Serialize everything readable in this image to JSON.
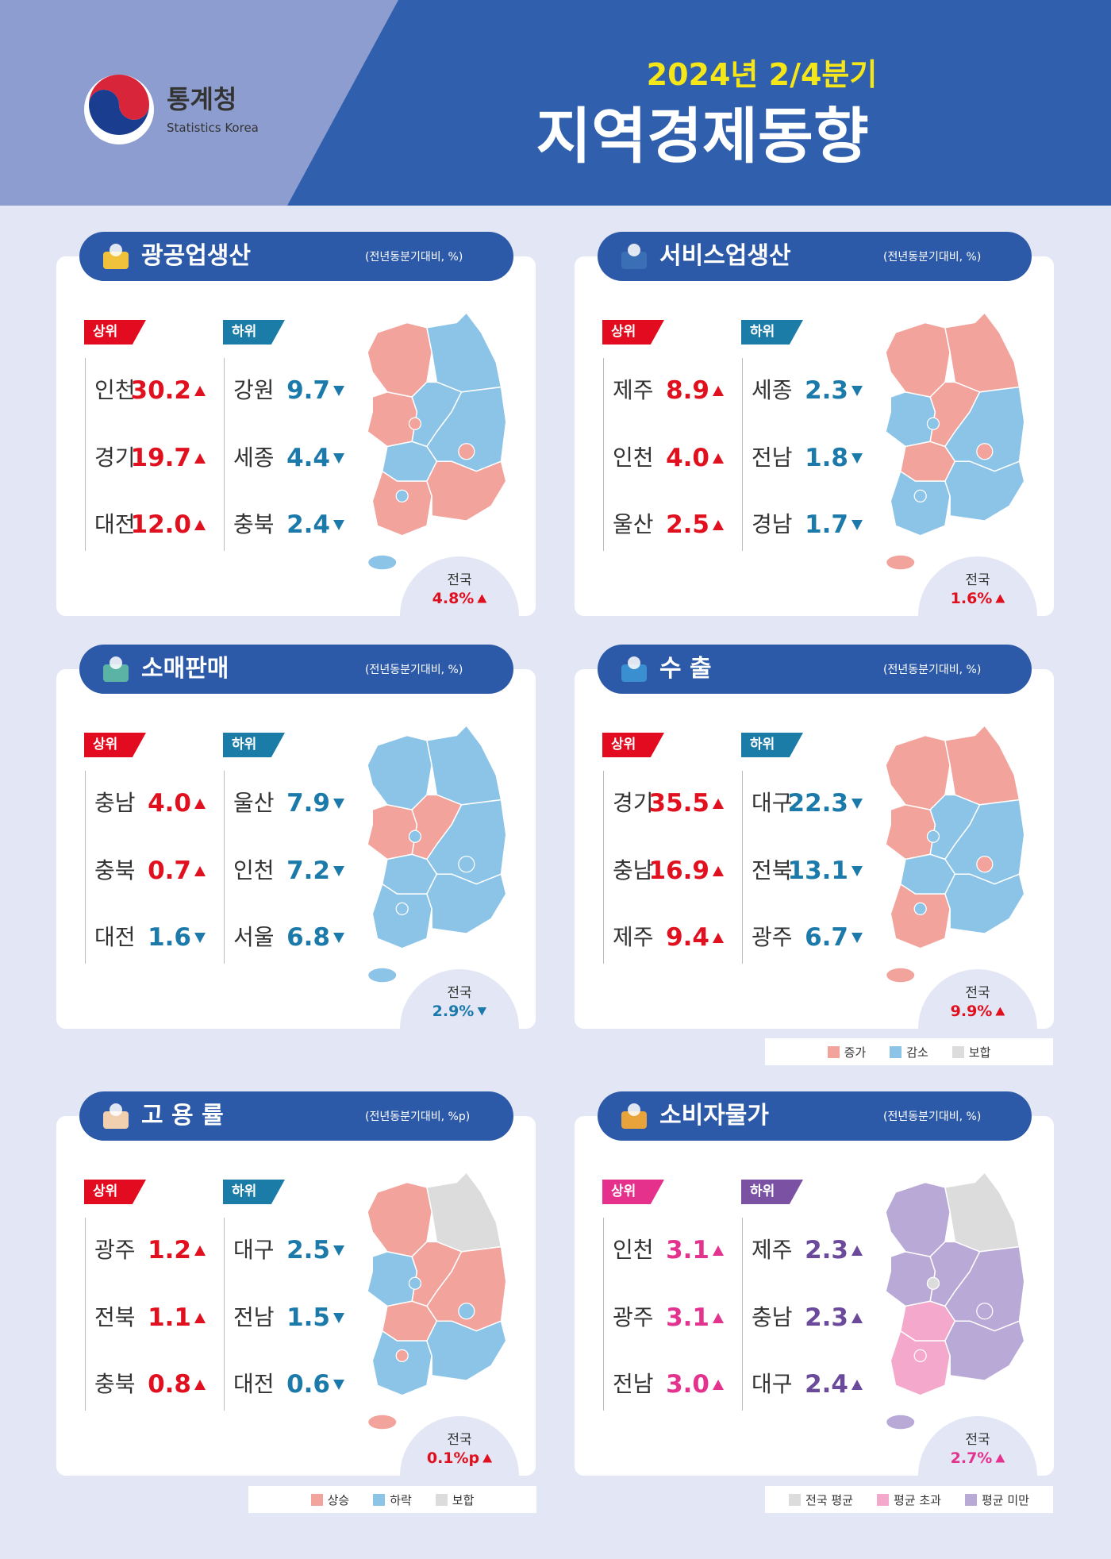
{
  "header": {
    "logo_name": "통계청",
    "logo_sub": "Statistics Korea",
    "period": "2024년 2/4분기",
    "title": "지역경제동향"
  },
  "panels": [
    {
      "title": "광공업생산",
      "unit": "(전년동분기대비, %)",
      "top_label": "상위",
      "bottom_label": "하위",
      "top": [
        {
          "region": "인천",
          "value": "30.2",
          "trend": "up"
        },
        {
          "region": "경기",
          "value": "19.7",
          "trend": "up"
        },
        {
          "region": "대전",
          "value": "12.0",
          "trend": "up"
        }
      ],
      "bottom": [
        {
          "region": "강원",
          "value": "9.7",
          "trend": "down"
        },
        {
          "region": "세종",
          "value": "4.4",
          "trend": "down"
        },
        {
          "region": "충북",
          "value": "2.4",
          "trend": "down"
        }
      ],
      "national": {
        "label": "전국",
        "value": "4.8%",
        "trend": "up"
      }
    },
    {
      "title": "서비스업생산",
      "unit": "(전년동분기대비, %)",
      "top_label": "상위",
      "bottom_label": "하위",
      "top": [
        {
          "region": "제주",
          "value": "8.9",
          "trend": "up"
        },
        {
          "region": "인천",
          "value": "4.0",
          "trend": "up"
        },
        {
          "region": "울산",
          "value": "2.5",
          "trend": "up"
        }
      ],
      "bottom": [
        {
          "region": "세종",
          "value": "2.3",
          "trend": "down"
        },
        {
          "region": "전남",
          "value": "1.8",
          "trend": "down"
        },
        {
          "region": "경남",
          "value": "1.7",
          "trend": "down"
        }
      ],
      "national": {
        "label": "전국",
        "value": "1.6%",
        "trend": "up"
      }
    },
    {
      "title": "소매판매",
      "unit": "(전년동분기대비, %)",
      "top_label": "상위",
      "bottom_label": "하위",
      "top": [
        {
          "region": "충남",
          "value": "4.0",
          "trend": "up"
        },
        {
          "region": "충북",
          "value": "0.7",
          "trend": "up"
        },
        {
          "region": "대전",
          "value": "1.6",
          "trend": "down"
        }
      ],
      "bottom": [
        {
          "region": "울산",
          "value": "7.9",
          "trend": "down"
        },
        {
          "region": "인천",
          "value": "7.2",
          "trend": "down"
        },
        {
          "region": "서울",
          "value": "6.8",
          "trend": "down"
        }
      ],
      "national": {
        "label": "전국",
        "value": "2.9%",
        "trend": "down"
      }
    },
    {
      "title": "수 출",
      "unit": "(전년동분기대비, %)",
      "top_label": "상위",
      "bottom_label": "하위",
      "top": [
        {
          "region": "경기",
          "value": "35.5",
          "trend": "up"
        },
        {
          "region": "충남",
          "value": "16.9",
          "trend": "up"
        },
        {
          "region": "제주",
          "value": "9.4",
          "trend": "up"
        }
      ],
      "bottom": [
        {
          "region": "대구",
          "value": "22.3",
          "trend": "down"
        },
        {
          "region": "전북",
          "value": "13.1",
          "trend": "down"
        },
        {
          "region": "광주",
          "value": "6.7",
          "trend": "down"
        }
      ],
      "national": {
        "label": "전국",
        "value": "9.9%",
        "trend": "up"
      }
    },
    {
      "title": "고 용 률",
      "unit": "(전년동분기대비, %p)",
      "top_label": "상위",
      "bottom_label": "하위",
      "top": [
        {
          "region": "광주",
          "value": "1.2",
          "trend": "up"
        },
        {
          "region": "전북",
          "value": "1.1",
          "trend": "up"
        },
        {
          "region": "충북",
          "value": "0.8",
          "trend": "up"
        }
      ],
      "bottom": [
        {
          "region": "대구",
          "value": "2.5",
          "trend": "down"
        },
        {
          "region": "전남",
          "value": "1.5",
          "trend": "down"
        },
        {
          "region": "대전",
          "value": "0.6",
          "trend": "down"
        }
      ],
      "national": {
        "label": "전국",
        "value": "0.1%p",
        "trend": "up"
      }
    },
    {
      "title": "소비자물가",
      "unit": "(전년동분기대비, %)",
      "top_label": "상위",
      "bottom_label": "하위",
      "top": [
        {
          "region": "인천",
          "value": "3.1",
          "trend": "up"
        },
        {
          "region": "광주",
          "value": "3.1",
          "trend": "up"
        },
        {
          "region": "전남",
          "value": "3.0",
          "trend": "up"
        }
      ],
      "bottom": [
        {
          "region": "제주",
          "value": "2.3",
          "trend": "up"
        },
        {
          "region": "충남",
          "value": "2.3",
          "trend": "up"
        },
        {
          "region": "대구",
          "value": "2.4",
          "trend": "up"
        }
      ],
      "national": {
        "label": "전국",
        "value": "2.7%",
        "trend": "up"
      }
    }
  ],
  "legends": [
    {
      "items": [
        {
          "label": "증가",
          "color": "#f2a39c"
        },
        {
          "label": "감소",
          "color": "#8cc4e8"
        },
        {
          "label": "보합",
          "color": "#dcdcdc"
        }
      ]
    },
    {
      "items": [
        {
          "label": "상승",
          "color": "#f2a39c"
        },
        {
          "label": "하락",
          "color": "#8cc4e8"
        },
        {
          "label": "보합",
          "color": "#dcdcdc"
        }
      ]
    },
    {
      "items": [
        {
          "label": "전국 평균",
          "color": "#dcdcdc"
        },
        {
          "label": "평균 초과",
          "color": "#f4a9cc"
        },
        {
          "label": "평균 미만",
          "color": "#b9a9d6"
        }
      ]
    }
  ]
}
